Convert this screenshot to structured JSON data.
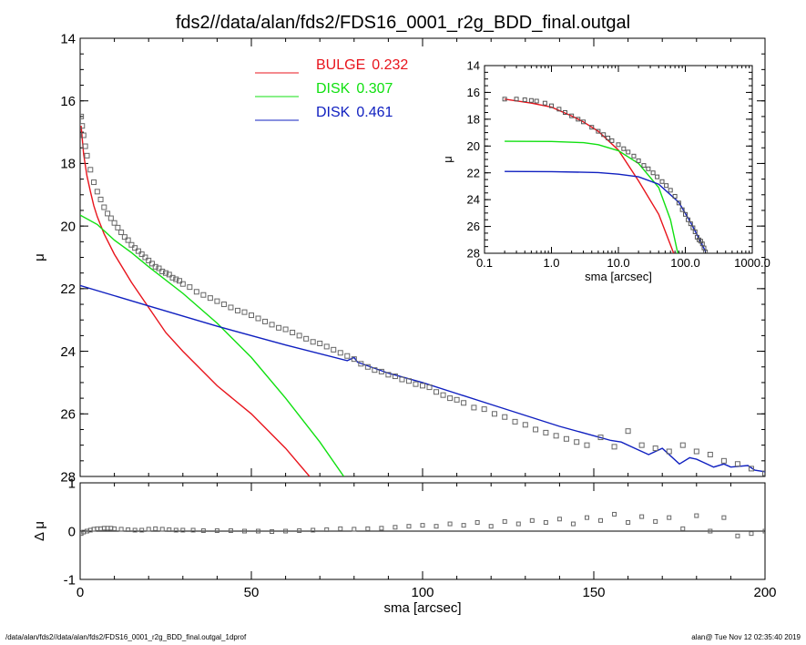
{
  "title": "fds2//data/alan/fds2/FDS16_0001_r2g_BDD_final.outgal",
  "footer": {
    "left": "/data/alan/fds2//data/alan/fds2/FDS16_0001_r2g_BDD_final.outgal_1dprof",
    "right": "alan@  Tue Nov 12 02:35:40 2019"
  },
  "colors": {
    "bulge": "#e8141c",
    "disk1": "#10e010",
    "disk2": "#1020c0",
    "points": "#666666",
    "axes": "#000000"
  },
  "chart_data": [
    {
      "id": "main",
      "type": "line",
      "xlabel": "sma [arcsec]",
      "ylabel": "μ",
      "xlim": [
        0,
        200
      ],
      "ylim": [
        28,
        14
      ],
      "xticks": [
        0,
        50,
        100,
        150,
        200
      ],
      "yticks": [
        14,
        16,
        18,
        20,
        22,
        24,
        26,
        28
      ],
      "legend": {
        "placement": "top-center",
        "entries": [
          {
            "label": "BULGE",
            "value": "0.232",
            "color": "#e8141c"
          },
          {
            "label": "DISK",
            "value": "0.307",
            "color": "#10e010"
          },
          {
            "label": "DISK",
            "value": "0.461",
            "color": "#1020c0"
          }
        ]
      },
      "series": [
        {
          "key": "bulge",
          "color": "#e8141c",
          "x": [
            0.3,
            1,
            2,
            3,
            4,
            5,
            7,
            10,
            15,
            20,
            25,
            30,
            40,
            50,
            60,
            67
          ],
          "y": [
            16.8,
            17.7,
            18.4,
            18.9,
            19.35,
            19.7,
            20.25,
            20.9,
            21.8,
            22.6,
            23.4,
            24.0,
            25.1,
            26.0,
            27.1,
            28.0
          ]
        },
        {
          "key": "disk1",
          "color": "#10e010",
          "x": [
            0,
            5,
            10,
            15,
            20,
            30,
            40,
            50,
            60,
            70,
            77
          ],
          "y": [
            19.65,
            19.95,
            20.45,
            20.85,
            21.3,
            22.15,
            23.1,
            24.2,
            25.5,
            26.9,
            28.0
          ]
        },
        {
          "key": "disk2",
          "color": "#1020c0",
          "x": [
            0,
            20,
            40,
            60,
            78,
            80,
            81,
            90,
            100,
            110,
            120,
            130,
            140,
            150,
            155,
            158,
            162,
            166,
            170,
            175,
            178,
            180,
            182,
            185,
            188,
            190,
            195,
            197,
            200
          ],
          "y": [
            21.9,
            22.55,
            23.2,
            23.8,
            24.3,
            24.2,
            24.35,
            24.7,
            25.0,
            25.35,
            25.7,
            26.05,
            26.4,
            26.7,
            26.85,
            26.9,
            27.1,
            27.3,
            27.1,
            27.6,
            27.4,
            27.45,
            27.55,
            27.7,
            27.6,
            27.7,
            27.65,
            27.8,
            27.85
          ]
        },
        {
          "key": "data",
          "color": "#666666",
          "marker": "square",
          "x": [
            0.3,
            0.6,
            1,
            1.5,
            2,
            3,
            4,
            5,
            6,
            7,
            8,
            9,
            10,
            11,
            12,
            13,
            14,
            15,
            16,
            17,
            18,
            19,
            20,
            21,
            22,
            23,
            24,
            25,
            26,
            27,
            28,
            29,
            30,
            32,
            34,
            36,
            38,
            40,
            42,
            44,
            46,
            48,
            50,
            52,
            54,
            56,
            58,
            60,
            62,
            64,
            66,
            68,
            70,
            72,
            74,
            76,
            78,
            80,
            82,
            84,
            86,
            88,
            90,
            92,
            94,
            96,
            98,
            100,
            102,
            104,
            106,
            108,
            110,
            112,
            115,
            118,
            121,
            124,
            127,
            130,
            133,
            136,
            139,
            142,
            145,
            148,
            152,
            156,
            160,
            164,
            168,
            172,
            176,
            180,
            184,
            188,
            192,
            196,
            200
          ],
          "y": [
            16.5,
            16.8,
            17.1,
            17.45,
            17.75,
            18.2,
            18.6,
            18.9,
            19.15,
            19.4,
            19.6,
            19.75,
            19.9,
            20.05,
            20.2,
            20.35,
            20.45,
            20.6,
            20.7,
            20.8,
            20.9,
            21.0,
            21.1,
            21.2,
            21.3,
            21.35,
            21.45,
            21.5,
            21.55,
            21.65,
            21.7,
            21.75,
            21.85,
            21.95,
            22.1,
            22.2,
            22.3,
            22.4,
            22.5,
            22.6,
            22.7,
            22.75,
            22.85,
            22.95,
            23.05,
            23.15,
            23.25,
            23.3,
            23.4,
            23.5,
            23.6,
            23.7,
            23.75,
            23.85,
            23.95,
            24.05,
            24.15,
            24.25,
            24.4,
            24.5,
            24.6,
            24.65,
            24.75,
            24.8,
            24.9,
            24.95,
            25.05,
            25.1,
            25.15,
            25.3,
            25.4,
            25.5,
            25.55,
            25.65,
            25.8,
            25.85,
            26.0,
            26.1,
            26.25,
            26.35,
            26.5,
            26.6,
            26.7,
            26.8,
            26.9,
            27.0,
            26.75,
            27.05,
            26.55,
            27.0,
            27.1,
            27.2,
            27.0,
            27.2,
            27.3,
            27.5,
            27.6,
            27.75,
            27.9
          ]
        }
      ]
    },
    {
      "id": "residual",
      "type": "scatter",
      "xlabel": "sma [arcsec]",
      "ylabel": "Δ μ",
      "xlim": [
        0,
        200
      ],
      "ylim": [
        -1,
        1
      ],
      "xticks": [
        0,
        50,
        100,
        150,
        200
      ],
      "yticks": [
        -1,
        0,
        1
      ],
      "zero_line": true,
      "x": [
        0.3,
        1,
        2,
        3,
        4,
        5,
        6,
        7,
        8,
        9,
        10,
        12,
        14,
        16,
        18,
        20,
        22,
        24,
        26,
        28,
        30,
        33,
        36,
        40,
        44,
        48,
        52,
        56,
        60,
        64,
        68,
        72,
        76,
        80,
        84,
        88,
        92,
        96,
        100,
        104,
        108,
        112,
        116,
        120,
        124,
        128,
        132,
        136,
        140,
        144,
        148,
        152,
        156,
        160,
        164,
        168,
        172,
        176,
        180,
        184,
        188,
        192,
        196,
        200
      ],
      "y": [
        -0.05,
        -0.02,
        0.0,
        0.02,
        0.04,
        0.05,
        0.05,
        0.06,
        0.06,
        0.06,
        0.05,
        0.04,
        0.03,
        0.02,
        0.02,
        0.04,
        0.05,
        0.04,
        0.03,
        0.02,
        0.02,
        0.02,
        0.01,
        0.01,
        0.01,
        0.0,
        0.0,
        -0.01,
        0.0,
        0.01,
        0.02,
        0.03,
        0.05,
        0.04,
        0.05,
        0.06,
        0.08,
        0.1,
        0.12,
        0.1,
        0.15,
        0.12,
        0.18,
        0.1,
        0.2,
        0.15,
        0.22,
        0.18,
        0.25,
        0.15,
        0.28,
        0.22,
        0.35,
        0.18,
        0.3,
        0.2,
        0.28,
        0.05,
        0.32,
        0.0,
        0.28,
        -0.1,
        -0.05,
        0.0
      ]
    },
    {
      "id": "inset",
      "type": "line",
      "xlabel": "sma [arcsec]",
      "ylabel": "μ",
      "xscale": "log",
      "xlim": [
        0.1,
        1000
      ],
      "ylim": [
        28,
        14
      ],
      "xticks": [
        "0.1",
        "1.0",
        "10.0",
        "100.0",
        "1000.0"
      ],
      "yticks": [
        14,
        16,
        18,
        20,
        22,
        24,
        26,
        28
      ],
      "series": [
        {
          "key": "bulge",
          "color": "#e8141c",
          "x": [
            0.2,
            0.5,
            1,
            2,
            3,
            5,
            10,
            20,
            40,
            67
          ],
          "y": [
            16.5,
            16.8,
            17.1,
            17.75,
            18.2,
            18.9,
            20.3,
            22.6,
            25.1,
            28.0
          ]
        },
        {
          "key": "disk1",
          "color": "#10e010",
          "x": [
            0.2,
            1,
            3,
            5,
            10,
            20,
            40,
            60,
            77
          ],
          "y": [
            19.65,
            19.66,
            19.75,
            19.9,
            20.35,
            21.3,
            23.1,
            25.5,
            28.0
          ]
        },
        {
          "key": "disk2",
          "color": "#1020c0",
          "x": [
            0.2,
            1,
            5,
            10,
            20,
            40,
            80,
            120,
            160,
            200
          ],
          "y": [
            21.9,
            21.91,
            21.98,
            22.1,
            22.3,
            22.85,
            24.2,
            25.7,
            26.9,
            27.85
          ]
        },
        {
          "key": "data",
          "color": "#555555",
          "marker": "square",
          "x": [
            0.2,
            0.3,
            0.4,
            0.5,
            0.6,
            0.8,
            1.0,
            1.3,
            1.6,
            2,
            2.5,
            3,
            4,
            5,
            6,
            7,
            8,
            10,
            12,
            14,
            17,
            20,
            24,
            28,
            33,
            38,
            45,
            52,
            60,
            70,
            80,
            90,
            100,
            110,
            120,
            130,
            140,
            150,
            160,
            170,
            180,
            190,
            200
          ],
          "y": [
            16.5,
            16.5,
            16.55,
            16.6,
            16.65,
            16.8,
            17.0,
            17.25,
            17.5,
            17.75,
            18.0,
            18.2,
            18.6,
            18.9,
            19.15,
            19.4,
            19.6,
            19.9,
            20.2,
            20.45,
            20.75,
            21.1,
            21.45,
            21.7,
            22.0,
            22.3,
            22.65,
            22.95,
            23.3,
            23.75,
            24.25,
            24.75,
            25.1,
            25.5,
            25.8,
            26.1,
            26.4,
            26.8,
            27.0,
            27.1,
            27.3,
            27.6,
            27.9
          ]
        }
      ]
    }
  ]
}
